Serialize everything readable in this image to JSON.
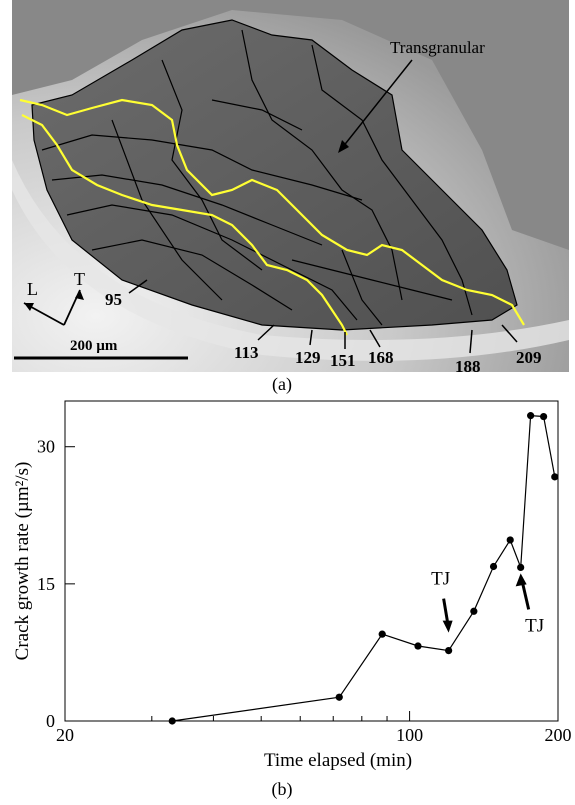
{
  "panel_a": {
    "caption": "(a)",
    "annotation_transgranular": "Transgranular",
    "scale_bar_label": "200 µm",
    "axis_L": "L",
    "axis_T": "T",
    "front_labels": [
      "95",
      "113",
      "129",
      "151",
      "168",
      "188",
      "209"
    ]
  },
  "panel_b": {
    "caption": "(b)"
  },
  "chart_data": {
    "type": "line",
    "title": "",
    "xlabel": "Time elapsed (min)",
    "ylabel": "Crack growth rate (µm²/s)",
    "x_scale": "log",
    "xlim": [
      20,
      200
    ],
    "ylim": [
      0,
      35
    ],
    "x_ticks": [
      20,
      100,
      200
    ],
    "y_ticks": [
      0,
      15,
      30
    ],
    "grid": false,
    "series": [
      {
        "x": [
          33,
          72,
          88,
          104,
          120,
          135,
          148,
          160,
          168,
          176,
          187,
          197
        ],
        "y": [
          0,
          2.6,
          9.5,
          8.2,
          7.7,
          12,
          16.9,
          19.8,
          16.8,
          33.4,
          33.3,
          26.7
        ]
      }
    ],
    "annotations": [
      {
        "text": "TJ",
        "x": 120,
        "y": 7.7
      },
      {
        "text": "TJ",
        "x": 168,
        "y": 16.8
      }
    ]
  }
}
